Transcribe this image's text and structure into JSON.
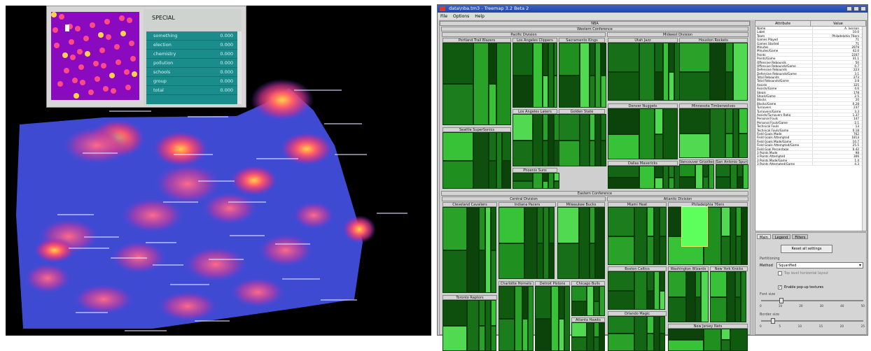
{
  "colors": {
    "terrain_low": "#3a48d6",
    "terrain_mid": "#c8328f",
    "terrain_peak": "#f6c240",
    "treemap_green": "#1fa61f",
    "titlebar": "#2a50b5"
  },
  "terrain": {
    "inset": {
      "title": "SPECIAL",
      "rows": [
        {
          "k": "something",
          "v": "0.000"
        },
        {
          "k": "election",
          "v": "0.000"
        },
        {
          "k": "chemistry",
          "v": "0.000"
        },
        {
          "k": "pollution",
          "v": "0.000"
        },
        {
          "k": "schools",
          "v": "0.000"
        },
        {
          "k": "group",
          "v": "0.000"
        },
        {
          "k": "total",
          "v": "0.000"
        }
      ]
    }
  },
  "treemap": {
    "window_title": "data\\nba.tm3 - Treemap 3.2 Beta 2",
    "menu": [
      "File",
      "Options",
      "Help"
    ],
    "root": "NBA",
    "conferences": [
      "Western Conference",
      "Eastern Conference"
    ],
    "divisions": [
      "Pacific Division",
      "Midwest Division",
      "Central Division",
      "Atlantic Division"
    ],
    "teams": [
      "Portland Trail Blazers",
      "Los Angeles Clippers",
      "Sacramento Kings",
      "Utah Jazz",
      "Houston Rockets",
      "Seattle SuperSonics",
      "Los Angeles Lakers",
      "Golden State",
      "Denver Nuggets",
      "Minnesota Timberwolves",
      "Phoenix Suns",
      "Dallas Mavericks",
      "Vancouver Grizzlies",
      "San Antonio Spurs",
      "Cleveland Cavaliers",
      "Indiana Pacers",
      "Milwaukee Bucks",
      "Miami Heat",
      "Philadelphia 76ers",
      "Toronto Raptors",
      "Charlotte Hornets",
      "Detroit Pistons",
      "Chicago Bulls",
      "Boston Celtics",
      "Washington Wizards",
      "New York Knicks",
      "Atlanta Hawks",
      "Orlando Magic",
      "New Jersey Nets"
    ],
    "attribute_header": {
      "attr": "Attribute",
      "value": "Value"
    },
    "attributes": [
      {
        "k": "Name",
        "v": "A. Iverson"
      },
      {
        "k": "Label",
        "v": "10.0"
      },
      {
        "k": "Team",
        "v": "Philadelphia 76ers"
      },
      {
        "k": "Games Played",
        "v": "71"
      },
      {
        "k": "Games Started",
        "v": "71"
      },
      {
        "k": "Minutes",
        "v": "2979"
      },
      {
        "k": "Minutes/Game",
        "v": "42.0"
      },
      {
        "k": "Points",
        "v": "2207"
      },
      {
        "k": "Points/Game",
        "v": "31.1"
      },
      {
        "k": "Offensive Rebounds",
        "v": "50"
      },
      {
        "k": "Offensive Rebounds/Game",
        "v": "0.7"
      },
      {
        "k": "Defensive Rebounds",
        "v": "223"
      },
      {
        "k": "Defensive Rebounds/Game",
        "v": "3.1"
      },
      {
        "k": "Total Rebounds",
        "v": "273"
      },
      {
        "k": "Total Rebounds/Game",
        "v": "3.8"
      },
      {
        "k": "Assists",
        "v": "325"
      },
      {
        "k": "Assists/Game",
        "v": "4.6"
      },
      {
        "k": "Steals",
        "v": "178"
      },
      {
        "k": "Steals/Game",
        "v": "2.5"
      },
      {
        "k": "Blocks",
        "v": "20"
      },
      {
        "k": "Blocks/Game",
        "v": "0.28"
      },
      {
        "k": "Turnovers",
        "v": "237"
      },
      {
        "k": "Turnovers/Game",
        "v": "3.3"
      },
      {
        "k": "Assists/Turnovers Ratio",
        "v": "1.37"
      },
      {
        "k": "Personal Fouls",
        "v": "147"
      },
      {
        "k": "Personal Fouls/Game",
        "v": "2.1"
      },
      {
        "k": "Technical Fouls",
        "v": "13"
      },
      {
        "k": "Technical Fouls/Game",
        "v": "0.18"
      },
      {
        "k": "Field Goals Made",
        "v": "762"
      },
      {
        "k": "Field Goals Attempted",
        "v": "1813"
      },
      {
        "k": "Field Goals Made/Game",
        "v": "10.7"
      },
      {
        "k": "Field Goals Attempted/Game",
        "v": "25.5"
      },
      {
        "k": "Field Goal Percentage",
        "v": "0.42"
      },
      {
        "k": "3 Points Made",
        "v": "98"
      },
      {
        "k": "3 Points Attempted",
        "v": "306"
      },
      {
        "k": "3 Points Made/Game",
        "v": "1.4"
      },
      {
        "k": "3 Points Attempted/Game",
        "v": "4.3"
      }
    ],
    "tabs": [
      "Main",
      "Legend",
      "Filters"
    ],
    "reset_label": "Reset all settings",
    "partitioning_label": "Partitioning",
    "method_label": "Method",
    "method_value": "Squarified",
    "top_level_label": "Top level horizontal layout",
    "popup_label": "Enable pop-up textures",
    "font_size_label": "Font size",
    "font_size_ticks": [
      "0",
      "10",
      "20",
      "30",
      "40",
      "50"
    ],
    "border_size_label": "Border size",
    "border_size_ticks": [
      "0",
      "5",
      "10",
      "15",
      "20",
      "25"
    ],
    "window_buttons": [
      "minimize-icon",
      "maximize-icon",
      "close-icon"
    ]
  }
}
